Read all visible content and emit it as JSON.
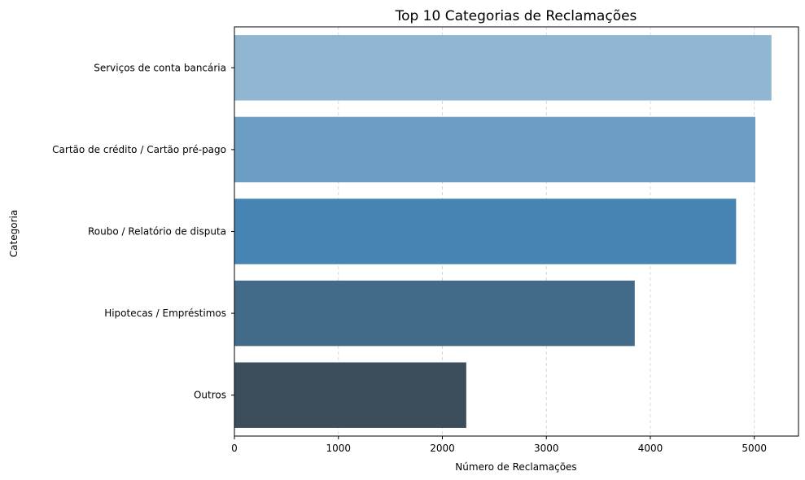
{
  "chart_data": {
    "type": "bar",
    "orientation": "horizontal",
    "title": "Top 10 Categorias de Reclamações",
    "xlabel": "Número de Reclamações",
    "ylabel": "Categoria",
    "categories": [
      "Serviços de conta bancária",
      "Cartão de crédito / Cartão pré-pago",
      "Roubo / Relatório de disputa",
      "Hipotecas / Empréstimos",
      "Outros"
    ],
    "values": [
      5165,
      5010,
      4825,
      3850,
      2230
    ],
    "colors": [
      "#91b6d2",
      "#6b9ec2",
      "#4685b3",
      "#426a89",
      "#3c4e5c"
    ],
    "xlim": [
      0,
      5425
    ],
    "xticks": [
      0,
      1000,
      2000,
      3000,
      4000,
      5000
    ],
    "grid": "x-dashed",
    "legend": "none"
  }
}
